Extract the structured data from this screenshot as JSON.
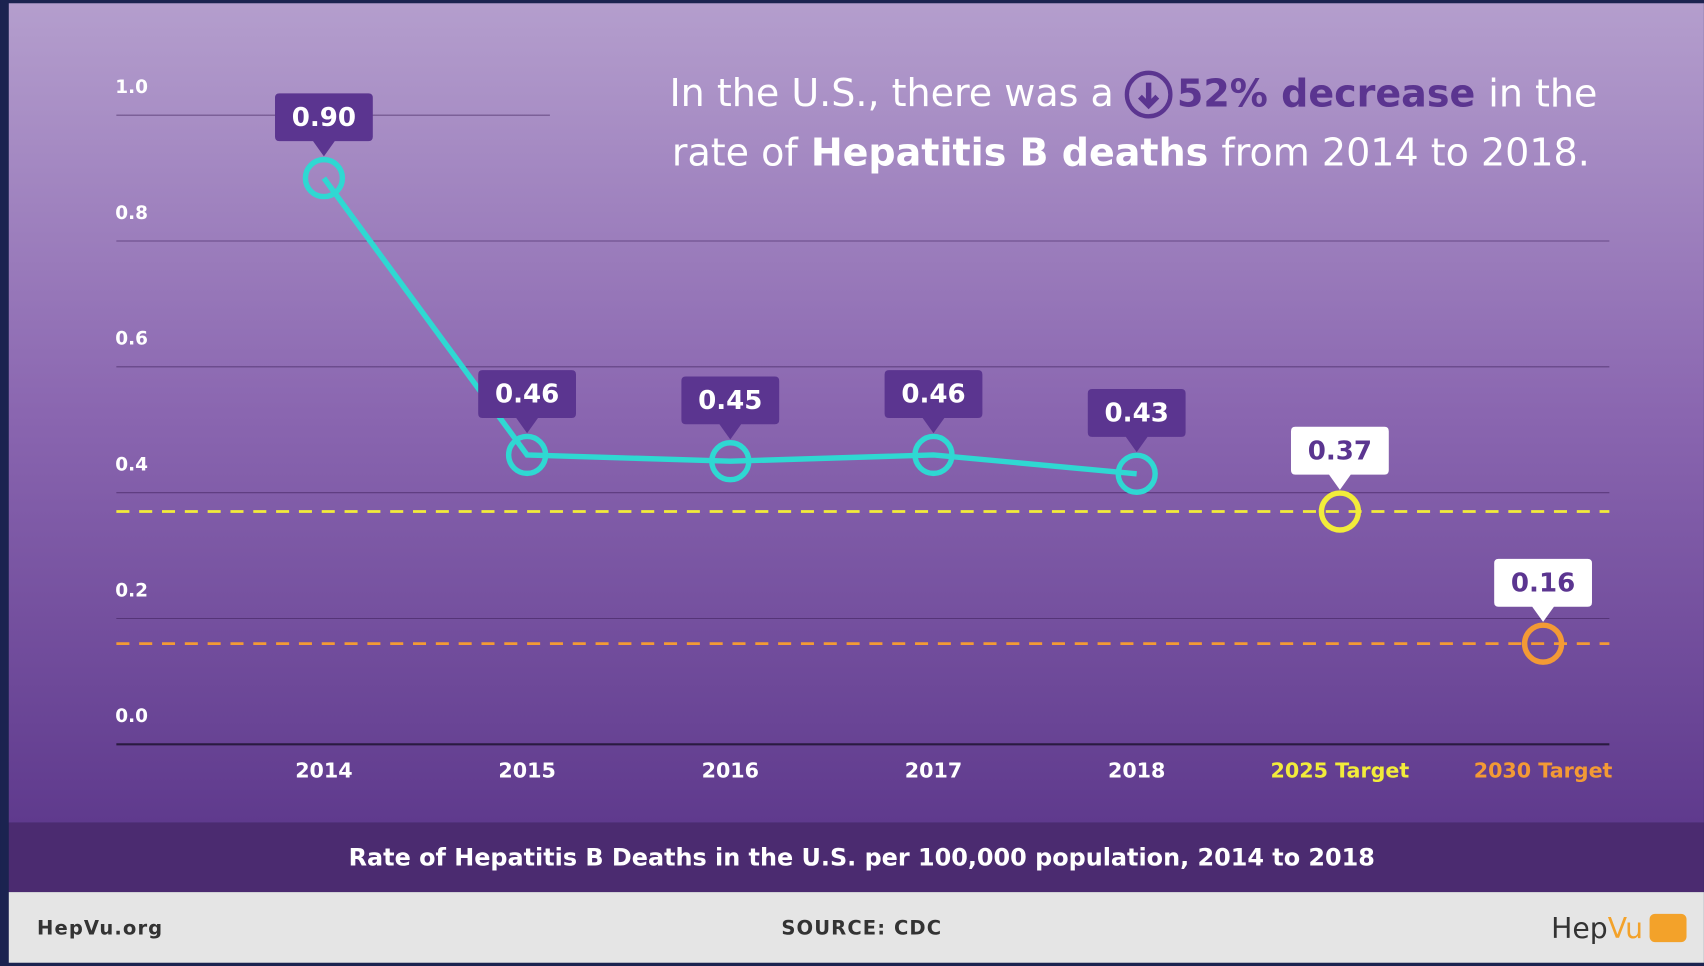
{
  "chart_data": {
    "type": "line",
    "headline": {
      "lead": "In the U.S., there was a",
      "emphasis": "52% decrease",
      "mid": "in the",
      "line2_lead": "rate of",
      "line2_emphasis": "Hepatitis B deaths",
      "line2_tail": "from 2014 to 2018."
    },
    "title": "Rate of Hepatitis B Deaths in the U.S. per 100,000 population, 2014 to 2018",
    "categories": [
      "2014",
      "2015",
      "2016",
      "2017",
      "2018",
      "2025 Target",
      "2030 Target"
    ],
    "category_colors": [
      "#ffffff",
      "#ffffff",
      "#ffffff",
      "#ffffff",
      "#ffffff",
      "#f2ec3a",
      "#f39a35"
    ],
    "series": [
      {
        "color": "#2fd8d2",
        "style": "solid",
        "values": [
          0.9,
          0.46,
          0.45,
          0.46,
          0.43,
          null,
          null
        ],
        "value_labels": [
          "0.90",
          "0.46",
          "0.45",
          "0.46",
          "0.43",
          null,
          null
        ]
      },
      {
        "color": "#f2ec3a",
        "style": "dashed",
        "values": [
          null,
          null,
          null,
          null,
          null,
          0.37,
          null
        ]
      },
      {
        "color": "#f39a35",
        "style": "dashed",
        "values": [
          null,
          null,
          null,
          null,
          null,
          null,
          0.16
        ]
      }
    ],
    "ylim": [
      0,
      1
    ],
    "yticks": [
      {
        "value": 0,
        "label": "0.0"
      },
      0.2,
      0.4,
      0.6,
      0.8,
      {
        "value": 1,
        "label": "1.0"
      }
    ],
    "grid": true,
    "footer": {
      "left": "HepVu.org",
      "source": "SOURCE: CDC",
      "logo_a": "Hep",
      "logo_b": "Vu"
    }
  }
}
